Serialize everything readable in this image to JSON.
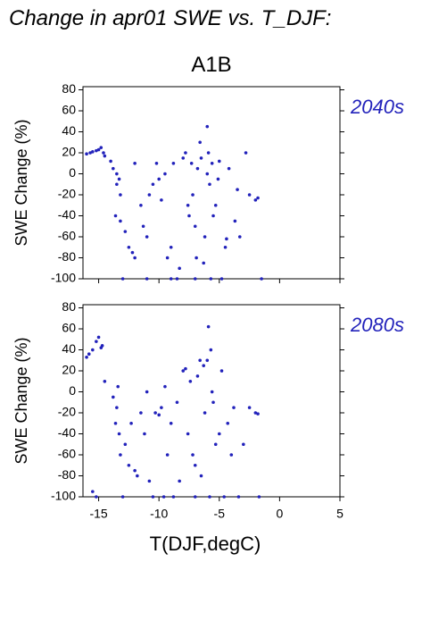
{
  "chart_data": [
    {
      "type": "scatter",
      "title": "Change in apr01 SWE vs. T_DJF:",
      "subtitle": "A1B",
      "annotation": "2040s",
      "ylabel": "SWE Change (%)",
      "color": "#2222bb",
      "xlim": [
        -16.3,
        5
      ],
      "ylim": [
        -100,
        83
      ],
      "xticks": [
        -15,
        -10,
        -5,
        0,
        5
      ],
      "yticks": [
        -100,
        -80,
        -60,
        -40,
        -20,
        0,
        20,
        40,
        60,
        80
      ],
      "x": [
        -16,
        -15.7,
        -15.5,
        -15.2,
        -15,
        -14.8,
        -14.6,
        -14.5,
        -14,
        -13.8,
        -13.5,
        -13.5,
        -13.3,
        -13.2,
        -13.6,
        -13.2,
        -12.8,
        -13,
        -12.5,
        -12.2,
        -12,
        -11.5,
        -11.3,
        -11,
        -11,
        -10.8,
        -10.5,
        -10.2,
        -10,
        -9.8,
        -9.5,
        -9.3,
        -9,
        -8.8,
        -8.5,
        -8.3,
        -8,
        -7.8,
        -7.6,
        -7.5,
        -7.3,
        -7.2,
        -7,
        -6.9,
        -6.8,
        -6.6,
        -6.5,
        -6.3,
        -6.2,
        -6,
        -6,
        -5.9,
        -5.8,
        -5.7,
        -5.6,
        -5.5,
        -5.3,
        -5.1,
        -5,
        -4.8,
        -4.5,
        -4.2,
        -3.7,
        -3.5,
        -3.3,
        -2.8,
        -2.5,
        -2,
        -1.8,
        -1.5,
        -12,
        -9,
        -7,
        -4.4
      ],
      "y": [
        19,
        20,
        21,
        22,
        23,
        25,
        20,
        17,
        12,
        5,
        0,
        -10,
        -5,
        -20,
        -40,
        -45,
        -55,
        -100,
        -70,
        -75,
        -80,
        -30,
        -50,
        -60,
        -100,
        -20,
        -10,
        10,
        -5,
        -25,
        0,
        -80,
        -70,
        10,
        -100,
        -90,
        15,
        20,
        -30,
        -40,
        10,
        -20,
        -50,
        -80,
        5,
        30,
        15,
        -85,
        -60,
        45,
        0,
        20,
        -10,
        -100,
        10,
        -40,
        -30,
        -5,
        12,
        -100,
        -70,
        5,
        -45,
        -15,
        -60,
        20,
        -20,
        -25,
        -23,
        -100,
        10,
        -100,
        -100,
        -62
      ]
    },
    {
      "type": "scatter",
      "annotation": "2080s",
      "ylabel": "SWE Change (%)",
      "xlabel": "T(DJF,degC)",
      "color": "#2222bb",
      "xlim": [
        -16.3,
        5
      ],
      "ylim": [
        -100,
        83
      ],
      "xticks": [
        -15,
        -10,
        -5,
        0,
        5
      ],
      "yticks": [
        -100,
        -80,
        -60,
        -40,
        -20,
        0,
        20,
        40,
        60,
        80
      ],
      "x": [
        -16,
        -15.8,
        -15.5,
        -15.2,
        -15,
        -14.8,
        -14.7,
        -14.5,
        -15.5,
        -15.2,
        -13.8,
        -13.6,
        -13.5,
        -13.4,
        -13.3,
        -13.2,
        -13,
        -12.8,
        -12.5,
        -12,
        -11.8,
        -11.5,
        -11.2,
        -11,
        -10.8,
        -10.5,
        -10.3,
        -10,
        -9.8,
        -9.5,
        -9.3,
        -9,
        -8.8,
        -8.5,
        -8.3,
        -8,
        -7.8,
        -7.6,
        -7.4,
        -7.2,
        -7,
        -6.8,
        -6.6,
        -6.5,
        -6.3,
        -6.2,
        -6,
        -5.9,
        -5.8,
        -5.7,
        -5.6,
        -5.5,
        -5.3,
        -5,
        -4.8,
        -4.6,
        -4.3,
        -4,
        -3.8,
        -3.4,
        -3,
        -2.5,
        -2,
        -1.7,
        -1.8,
        -7,
        -9.6,
        -12.3
      ],
      "y": [
        33,
        36,
        40,
        48,
        52,
        42,
        44,
        10,
        -95,
        -100,
        -5,
        -30,
        -15,
        5,
        -40,
        -60,
        -100,
        -50,
        -70,
        -75,
        -80,
        -20,
        -40,
        0,
        -85,
        -100,
        -20,
        -22,
        -15,
        5,
        -60,
        -30,
        -100,
        -10,
        -85,
        20,
        22,
        -40,
        10,
        -60,
        -70,
        15,
        30,
        -80,
        25,
        -20,
        30,
        62,
        -100,
        40,
        0,
        -10,
        -50,
        -40,
        20,
        -100,
        -30,
        -60,
        -15,
        -100,
        -50,
        -15,
        -20,
        -100,
        -21,
        -100,
        -100,
        -30
      ]
    }
  ]
}
